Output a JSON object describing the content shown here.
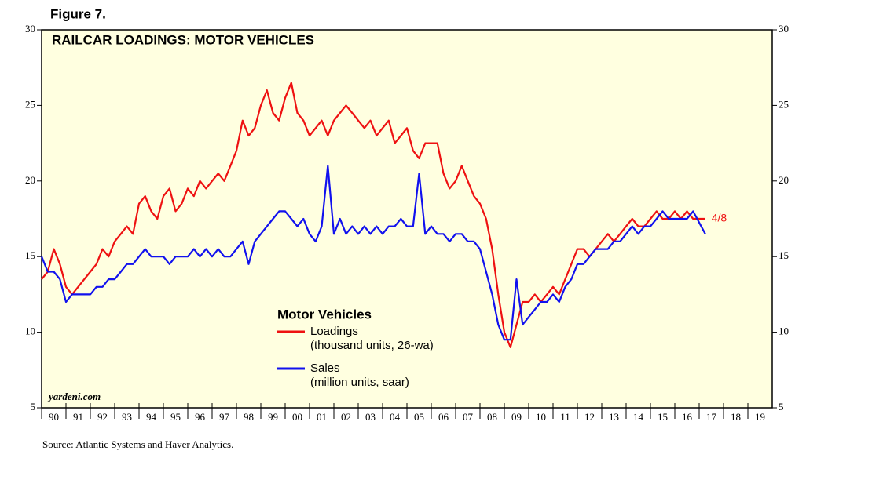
{
  "chart_data": {
    "type": "line",
    "figure_label": "Figure 7.",
    "title": "RAILCAR LOADINGS: MOTOR VEHICLES",
    "legend_title": "Motor Vehicles",
    "watermark": "yardeni.com",
    "source": "Source: Atlantic Systems and Haver Analytics.",
    "annotation": "4/8",
    "background": "#ffffe0",
    "xlim": [
      1990,
      2020
    ],
    "ylim": [
      5,
      30
    ],
    "yticks": [
      5,
      10,
      15,
      20,
      25,
      30
    ],
    "xticks": [
      {
        "value": 1990.5,
        "label": "90"
      },
      {
        "value": 1991.5,
        "label": "91"
      },
      {
        "value": 1992.5,
        "label": "92"
      },
      {
        "value": 1993.5,
        "label": "93"
      },
      {
        "value": 1994.5,
        "label": "94"
      },
      {
        "value": 1995.5,
        "label": "95"
      },
      {
        "value": 1996.5,
        "label": "96"
      },
      {
        "value": 1997.5,
        "label": "97"
      },
      {
        "value": 1998.5,
        "label": "98"
      },
      {
        "value": 1999.5,
        "label": "99"
      },
      {
        "value": 2000.5,
        "label": "00"
      },
      {
        "value": 2001.5,
        "label": "01"
      },
      {
        "value": 2002.5,
        "label": "02"
      },
      {
        "value": 2003.5,
        "label": "03"
      },
      {
        "value": 2004.5,
        "label": "04"
      },
      {
        "value": 2005.5,
        "label": "05"
      },
      {
        "value": 2006.5,
        "label": "06"
      },
      {
        "value": 2007.5,
        "label": "07"
      },
      {
        "value": 2008.5,
        "label": "08"
      },
      {
        "value": 2009.5,
        "label": "09"
      },
      {
        "value": 2010.5,
        "label": "10"
      },
      {
        "value": 2011.5,
        "label": "11"
      },
      {
        "value": 2012.5,
        "label": "12"
      },
      {
        "value": 2013.5,
        "label": "13"
      },
      {
        "value": 2014.5,
        "label": "14"
      },
      {
        "value": 2015.5,
        "label": "15"
      },
      {
        "value": 2016.5,
        "label": "16"
      },
      {
        "value": 2017.5,
        "label": "17"
      },
      {
        "value": 2018.5,
        "label": "18"
      },
      {
        "value": 2019.5,
        "label": "19"
      }
    ],
    "x": [
      1990,
      1990.25,
      1990.5,
      1990.75,
      1991,
      1991.25,
      1991.5,
      1991.75,
      1992,
      1992.25,
      1992.5,
      1992.75,
      1993,
      1993.25,
      1993.5,
      1993.75,
      1994,
      1994.25,
      1994.5,
      1994.75,
      1995,
      1995.25,
      1995.5,
      1995.75,
      1996,
      1996.25,
      1996.5,
      1996.75,
      1997,
      1997.25,
      1997.5,
      1997.75,
      1998,
      1998.25,
      1998.5,
      1998.75,
      1999,
      1999.25,
      1999.5,
      1999.75,
      2000,
      2000.25,
      2000.5,
      2000.75,
      2001,
      2001.25,
      2001.5,
      2001.75,
      2002,
      2002.25,
      2002.5,
      2002.75,
      2003,
      2003.25,
      2003.5,
      2003.75,
      2004,
      2004.25,
      2004.5,
      2004.75,
      2005,
      2005.25,
      2005.5,
      2005.75,
      2006,
      2006.25,
      2006.5,
      2006.75,
      2007,
      2007.25,
      2007.5,
      2007.75,
      2008,
      2008.25,
      2008.5,
      2008.75,
      2009,
      2009.25,
      2009.5,
      2009.75,
      2010,
      2010.25,
      2010.5,
      2010.75,
      2011,
      2011.25,
      2011.5,
      2011.75,
      2012,
      2012.25,
      2012.5,
      2012.75,
      2013,
      2013.25,
      2013.5,
      2013.75,
      2014,
      2014.25,
      2014.5,
      2014.75,
      2015,
      2015.25,
      2015.5,
      2015.75,
      2016,
      2016.25,
      2016.5,
      2016.75,
      2017.25
    ],
    "series": [
      {
        "name": "Loadings",
        "unit": "(thousand units, 26-wa)",
        "color": "#ee1111",
        "values": [
          13.5,
          14.0,
          15.5,
          14.5,
          13.0,
          12.5,
          13.0,
          13.5,
          14.0,
          14.5,
          15.5,
          15.0,
          16.0,
          16.5,
          17.0,
          16.5,
          18.5,
          19.0,
          18.0,
          17.5,
          19.0,
          19.5,
          18.0,
          18.5,
          19.5,
          19.0,
          20.0,
          19.5,
          20.0,
          20.5,
          20.0,
          21.0,
          22.0,
          24.0,
          23.0,
          23.5,
          25.0,
          26.0,
          24.5,
          24.0,
          25.5,
          26.5,
          24.5,
          24.0,
          23.0,
          23.5,
          24.0,
          23.0,
          24.0,
          24.5,
          25.0,
          24.5,
          24.0,
          23.5,
          24.0,
          23.0,
          23.5,
          24.0,
          22.5,
          23.0,
          23.5,
          22.0,
          21.5,
          22.5,
          22.5,
          22.5,
          20.5,
          19.5,
          20.0,
          21.0,
          20.0,
          19.0,
          18.5,
          17.5,
          15.5,
          12.5,
          10.0,
          9.0,
          10.5,
          12.0,
          12.0,
          12.5,
          12.0,
          12.5,
          13.0,
          12.5,
          13.5,
          14.5,
          15.5,
          15.5,
          15.0,
          15.5,
          16.0,
          16.5,
          16.0,
          16.5,
          17.0,
          17.5,
          17.0,
          17.0,
          17.5,
          18.0,
          17.5,
          17.5,
          18.0,
          17.5,
          18.0,
          17.5,
          17.5
        ]
      },
      {
        "name": "Sales",
        "unit": "(million units, saar)",
        "color": "#1111ee",
        "values": [
          15.0,
          14.0,
          14.0,
          13.5,
          12.0,
          12.5,
          12.5,
          12.5,
          12.5,
          13.0,
          13.0,
          13.5,
          13.5,
          14.0,
          14.5,
          14.5,
          15.0,
          15.5,
          15.0,
          15.0,
          15.0,
          14.5,
          15.0,
          15.0,
          15.0,
          15.5,
          15.0,
          15.5,
          15.0,
          15.5,
          15.0,
          15.0,
          15.5,
          16.0,
          14.5,
          16.0,
          16.5,
          17.0,
          17.5,
          18.0,
          18.0,
          17.5,
          17.0,
          17.5,
          16.5,
          16.0,
          17.0,
          21.0,
          16.5,
          17.5,
          16.5,
          17.0,
          16.5,
          17.0,
          16.5,
          17.0,
          16.5,
          17.0,
          17.0,
          17.5,
          17.0,
          17.0,
          20.5,
          16.5,
          17.0,
          16.5,
          16.5,
          16.0,
          16.5,
          16.5,
          16.0,
          16.0,
          15.5,
          14.0,
          12.5,
          10.5,
          9.5,
          9.5,
          13.5,
          10.5,
          11.0,
          11.5,
          12.0,
          12.0,
          12.5,
          12.0,
          13.0,
          13.5,
          14.5,
          14.5,
          15.0,
          15.5,
          15.5,
          15.5,
          16.0,
          16.0,
          16.5,
          17.0,
          16.5,
          17.0,
          17.0,
          17.5,
          18.0,
          17.5,
          17.5,
          17.5,
          17.5,
          18.0,
          16.5
        ]
      }
    ]
  }
}
